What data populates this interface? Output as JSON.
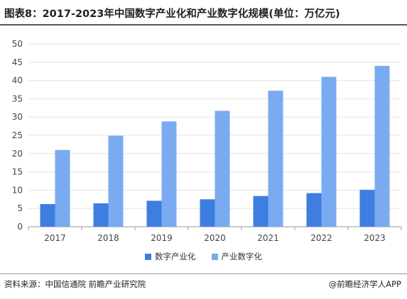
{
  "title": "图表8：2017-2023年中国数字产业化和产业数字化规模(单位：万亿元)",
  "colors": {
    "series_1": "#3d7ee0",
    "series_2": "#7aaaf0",
    "grid": "#e3e3e3",
    "axis": "#999999"
  },
  "chart_data": {
    "type": "bar",
    "categories": [
      "2017",
      "2018",
      "2019",
      "2020",
      "2021",
      "2022",
      "2023"
    ],
    "series": [
      {
        "name": "数字产业化",
        "values": [
          6.2,
          6.4,
          7.1,
          7.5,
          8.4,
          9.2,
          10.1
        ]
      },
      {
        "name": "产业数字化",
        "values": [
          21.0,
          24.9,
          28.8,
          31.7,
          37.2,
          41.0,
          44.0
        ]
      }
    ],
    "yticks": [
      0,
      5,
      10,
      15,
      20,
      25,
      30,
      35,
      40,
      45,
      50
    ],
    "ylim": [
      0,
      50
    ],
    "grid": true,
    "legend_position": "bottom"
  },
  "source": "资料来源：中国信通院 前瞻产业研究院",
  "brand": "@前瞻经济学人APP",
  "brand_icon": "circle-logo-icon"
}
